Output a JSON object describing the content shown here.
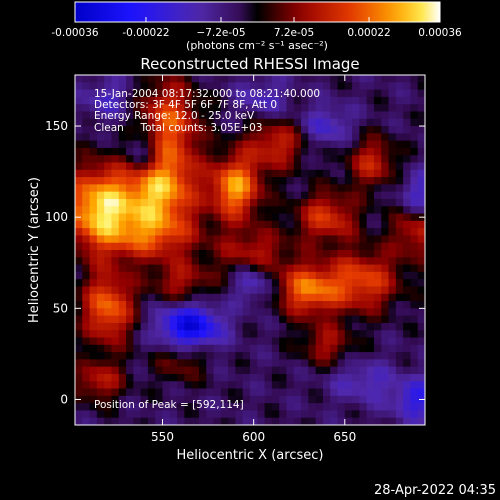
{
  "chart_data": {
    "type": "heatmap",
    "title": "Reconstructed RHESSI Image",
    "xlabel": "Heliocentric X (arcsec)",
    "ylabel": "Heliocentric Y (arcsec)",
    "xlim": [
      502,
      694
    ],
    "ylim": [
      -14,
      178
    ],
    "x_ticks": [
      550,
      600,
      650
    ],
    "y_ticks": [
      0,
      50,
      100,
      150
    ],
    "colorbar": {
      "min": -0.00036,
      "max": 0.00036,
      "tick_values": [
        -0.00036,
        -0.00022,
        -7.2e-05,
        7.2e-05,
        0.00022,
        0.00036
      ],
      "tick_labels": [
        "-0.00036",
        "-0.00022",
        "−7.2e-05",
        "7.2e-05",
        "0.00022",
        "0.00036"
      ],
      "unit_label": "(photons cm⁻² s⁻¹ asec⁻²)"
    },
    "annotations": [
      "15-Jan-2004 08:17:32.000 to 08:21:40.000",
      "Detectors: 3F 4F 5F 6F 7F 8F, Att 0",
      "Energy Range: 12.0 - 25.0 keV",
      "Clean     Total counts: 3.05E+03"
    ],
    "peak_label": "Position of Peak = [592,114]",
    "peak": {
      "x": 592,
      "y": 114
    },
    "colormap": "red-temperature with blue negative",
    "sources": [
      {
        "x": 515,
        "y": 105,
        "sx": 14,
        "sy": 16,
        "amp": 0.00034
      },
      {
        "x": 548,
        "y": 115,
        "sx": 14,
        "sy": 14,
        "amp": 0.0003
      },
      {
        "x": 590,
        "y": 116,
        "sx": 10,
        "sy": 12,
        "amp": 0.0003
      },
      {
        "x": 520,
        "y": 50,
        "sx": 10,
        "sy": 14,
        "amp": 0.00026
      },
      {
        "x": 553,
        "y": 150,
        "sx": 12,
        "sy": 18,
        "amp": 0.00024
      },
      {
        "x": 545,
        "y": 90,
        "sx": 18,
        "sy": 10,
        "amp": 0.0002
      },
      {
        "x": 630,
        "y": 60,
        "sx": 12,
        "sy": 10,
        "amp": 0.00026
      },
      {
        "x": 660,
        "y": 65,
        "sx": 14,
        "sy": 12,
        "amp": 0.00022
      },
      {
        "x": 640,
        "y": 100,
        "sx": 12,
        "sy": 10,
        "amp": 0.0002
      },
      {
        "x": 612,
        "y": 140,
        "sx": 12,
        "sy": 10,
        "amp": 0.00018
      },
      {
        "x": 665,
        "y": 130,
        "sx": 10,
        "sy": 10,
        "amp": 0.00017
      },
      {
        "x": 690,
        "y": 95,
        "sx": 10,
        "sy": 12,
        "amp": 0.0002
      },
      {
        "x": 600,
        "y": 80,
        "sx": 14,
        "sy": 10,
        "amp": 0.00016
      },
      {
        "x": 560,
        "y": 65,
        "sx": 12,
        "sy": 8,
        "amp": 0.00014
      },
      {
        "x": 640,
        "y": 30,
        "sx": 10,
        "sy": 8,
        "amp": 0.00014
      },
      {
        "x": 515,
        "y": 10,
        "sx": 10,
        "sy": 8,
        "amp": 0.00016
      },
      {
        "x": 560,
        "y": 20,
        "sx": 10,
        "sy": 8,
        "amp": 0.0001
      },
      {
        "x": 565,
        "y": 40,
        "sx": 12,
        "sy": 8,
        "amp": -0.00028
      },
      {
        "x": 540,
        "y": 135,
        "sx": 8,
        "sy": 10,
        "amp": -0.00016
      },
      {
        "x": 600,
        "y": 65,
        "sx": 8,
        "sy": 8,
        "amp": -0.00014
      },
      {
        "x": 690,
        "y": 110,
        "sx": 8,
        "sy": 10,
        "amp": -0.00018
      },
      {
        "x": 690,
        "y": 0,
        "sx": 10,
        "sy": 8,
        "amp": -0.00016
      },
      {
        "x": 640,
        "y": 150,
        "sx": 10,
        "sy": 8,
        "amp": -0.00012
      },
      {
        "x": 605,
        "y": 165,
        "sx": 10,
        "sy": 8,
        "amp": -0.0001
      },
      {
        "x": 660,
        "y": 10,
        "sx": 12,
        "sy": 8,
        "amp": -0.0001
      },
      {
        "x": 520,
        "y": 165,
        "sx": 10,
        "sy": 8,
        "amp": -0.0001
      }
    ],
    "background_level": -4e-05
  },
  "footer": {
    "date": "28-Apr-2022 04:35"
  }
}
